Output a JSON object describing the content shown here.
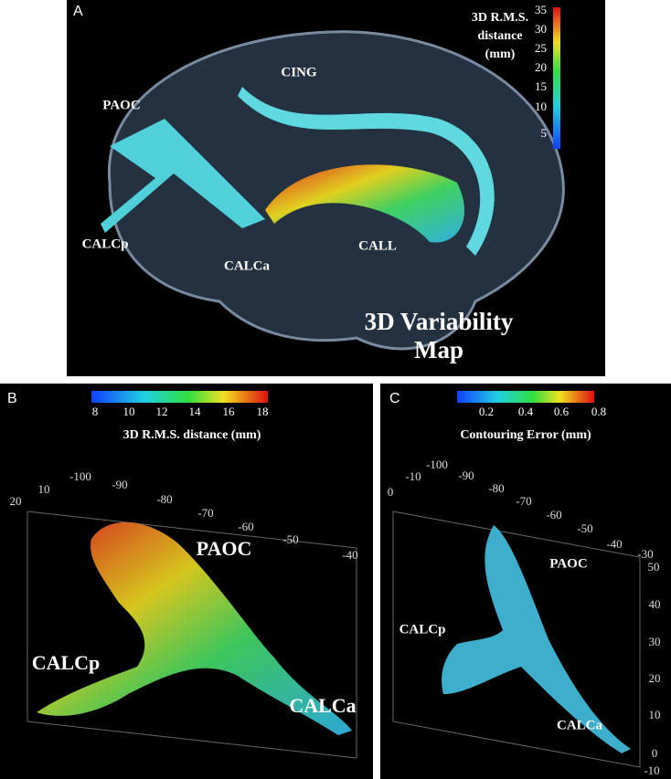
{
  "panels": [
    {
      "label": "A",
      "colorbar": {
        "title": [
          "3D R.M.S.",
          "distance",
          "(mm)"
        ],
        "ticks": [
          "35",
          "30",
          "25",
          "20",
          "15",
          "10",
          "5"
        ]
      },
      "structures": [
        "CING",
        "PAOC",
        "CALCp",
        "CALCa",
        "CALL"
      ],
      "caption": [
        "3D Variability",
        "Map"
      ]
    },
    {
      "label": "B",
      "colorbar": {
        "title": "3D R.M.S. distance (mm)",
        "ticks": [
          "8",
          "10",
          "12",
          "14",
          "16",
          "18"
        ]
      },
      "axis_ticks": [
        "20",
        "10",
        "-100",
        "-90",
        "-80",
        "-70",
        "-60",
        "-50",
        "-40"
      ],
      "structures": [
        "PAOC",
        "CALCp",
        "CALCa"
      ]
    },
    {
      "label": "C",
      "colorbar": {
        "title": "Contouring Error (mm)",
        "ticks": [
          "0.2",
          "0.4",
          "0.6",
          "0.8"
        ]
      },
      "axis_ticks": [
        "0",
        "-10",
        "-100",
        "-90",
        "-80",
        "-70",
        "-60",
        "-50",
        "-40",
        "-30"
      ],
      "side_ticks": [
        "50",
        "40",
        "30",
        "20",
        "10",
        "0",
        "-10"
      ],
      "structures": [
        "PAOC",
        "CALCp",
        "CALCa"
      ]
    }
  ]
}
